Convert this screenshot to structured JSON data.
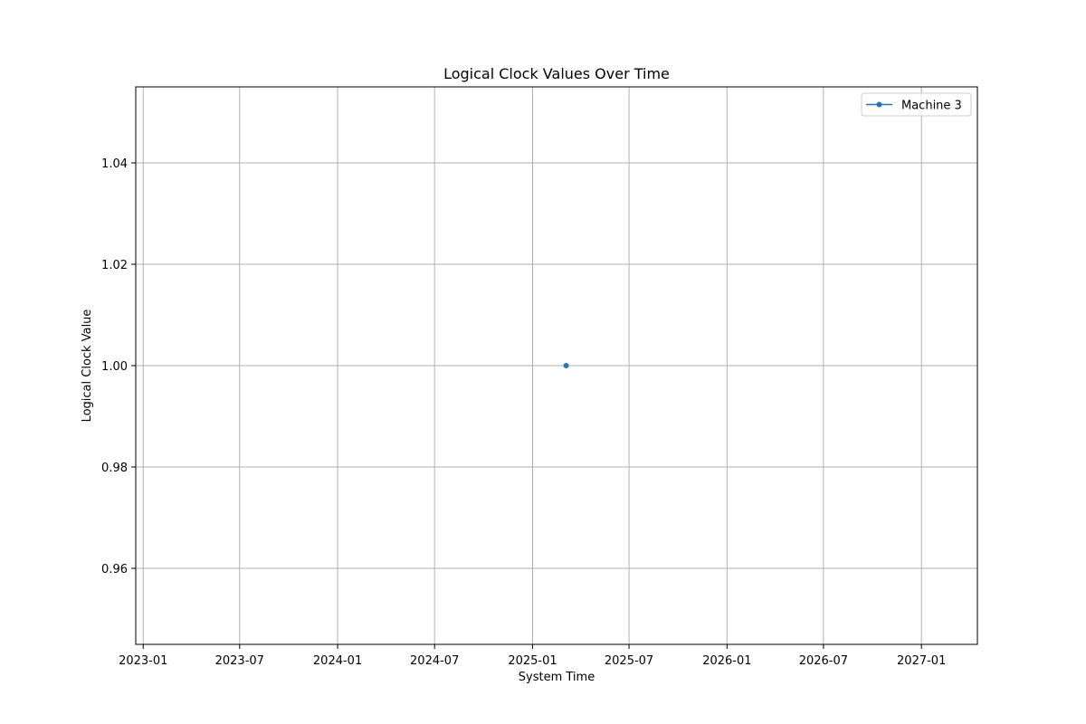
{
  "chart_data": {
    "type": "line",
    "title": "Logical Clock Values Over Time",
    "xlabel": "System Time",
    "ylabel": "Logical Clock Value",
    "x_ticks": [
      "2023-01",
      "2023-07",
      "2024-01",
      "2024-07",
      "2025-01",
      "2025-07",
      "2026-01",
      "2026-07",
      "2027-01"
    ],
    "y_ticks": [
      "0.96",
      "0.98",
      "1.00",
      "1.02",
      "1.04"
    ],
    "xlim": [
      "2022-12-18",
      "2027-04-16"
    ],
    "ylim": [
      0.945,
      1.055
    ],
    "grid": true,
    "legend_position": "upper right",
    "series": [
      {
        "name": "Machine 3",
        "color": "#1f77b4",
        "marker": "dot",
        "points": [
          {
            "x": "2025-03-05",
            "y": 1.0
          }
        ]
      }
    ]
  }
}
